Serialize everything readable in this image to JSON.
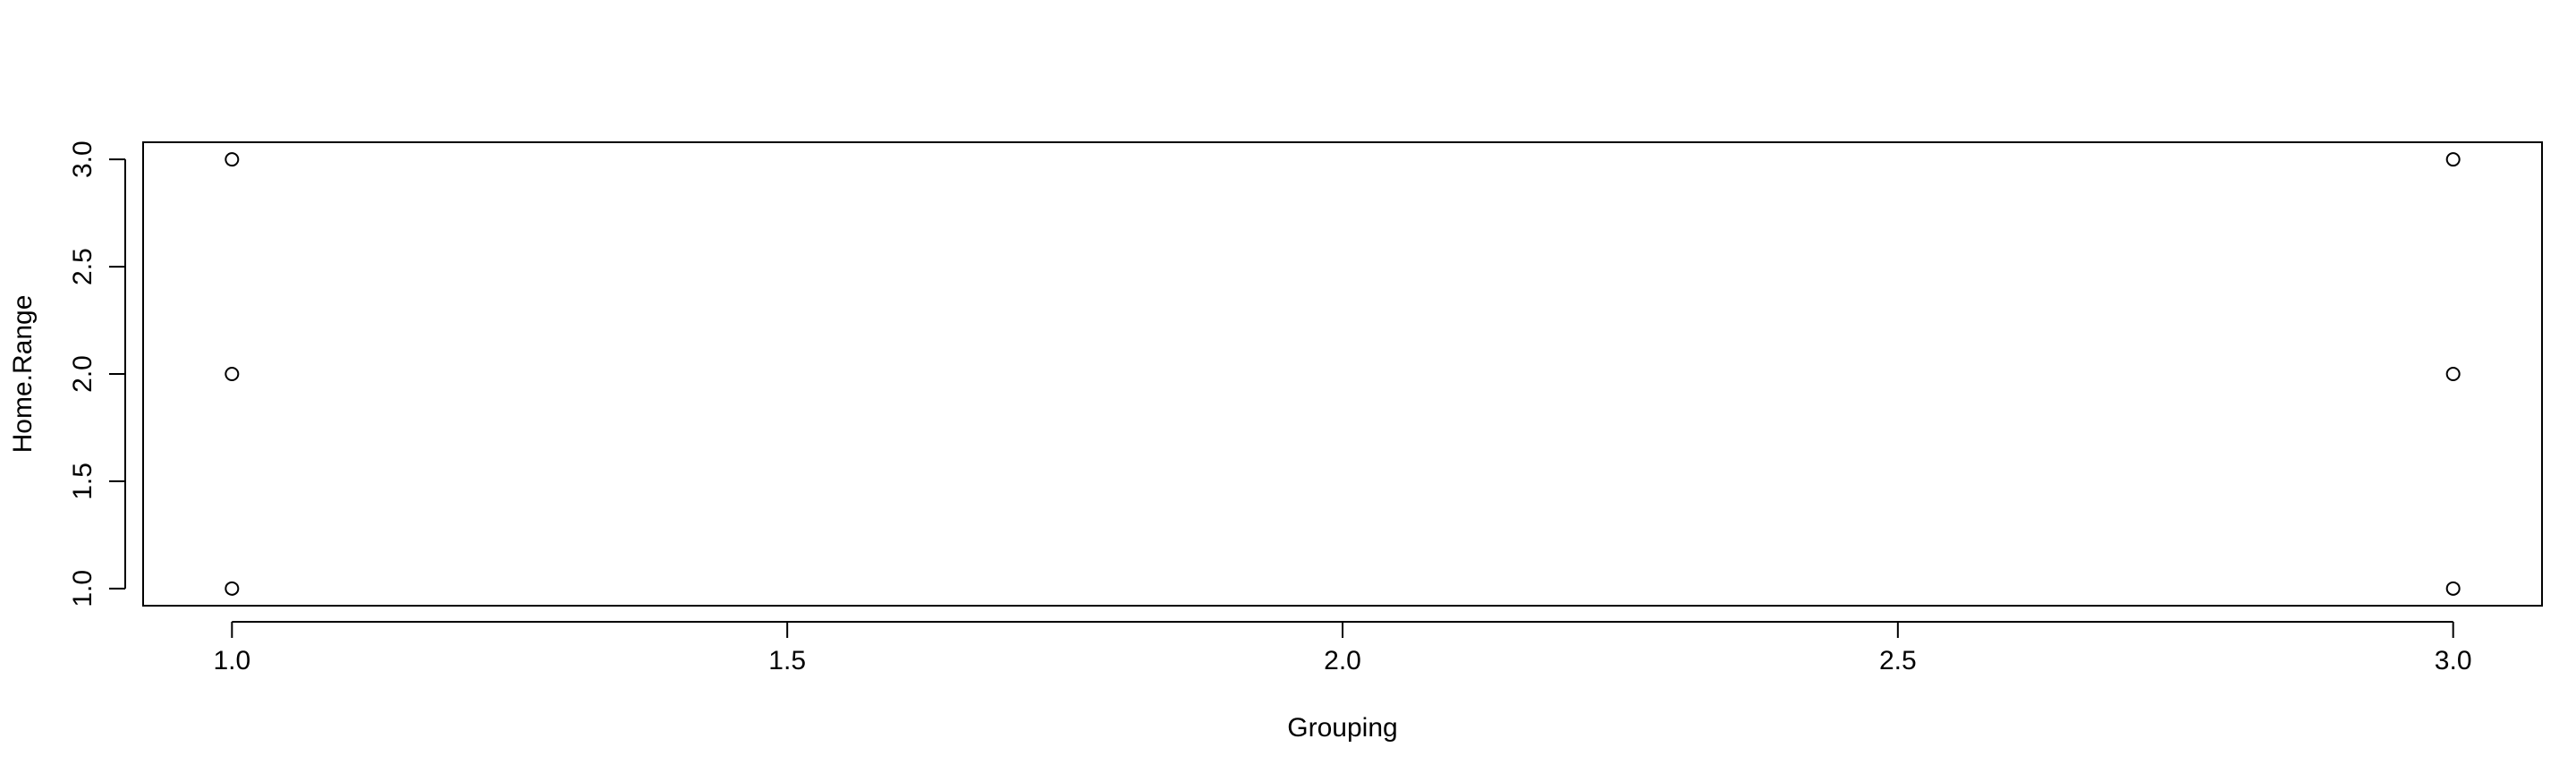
{
  "chart_data": {
    "type": "scatter",
    "title": "",
    "xlabel": "Grouping",
    "ylabel": "Home.Range",
    "xlim": [
      0.92,
      3.08
    ],
    "ylim": [
      0.92,
      3.08
    ],
    "x_ticks": [
      1.0,
      1.5,
      2.0,
      2.5,
      3.0
    ],
    "x_tick_labels": [
      "1.0",
      "1.5",
      "2.0",
      "2.5",
      "3.0"
    ],
    "y_ticks": [
      1.0,
      1.5,
      2.0,
      2.5,
      3.0
    ],
    "y_tick_labels": [
      "1.0",
      "1.5",
      "2.0",
      "2.5",
      "3.0"
    ],
    "grid": false,
    "legend": "none",
    "series": [
      {
        "x": [
          1,
          1,
          1,
          3,
          3,
          3
        ],
        "y": [
          1,
          2,
          3,
          1,
          2,
          3
        ],
        "marker": "open-circle",
        "color": "#000000"
      }
    ]
  }
}
